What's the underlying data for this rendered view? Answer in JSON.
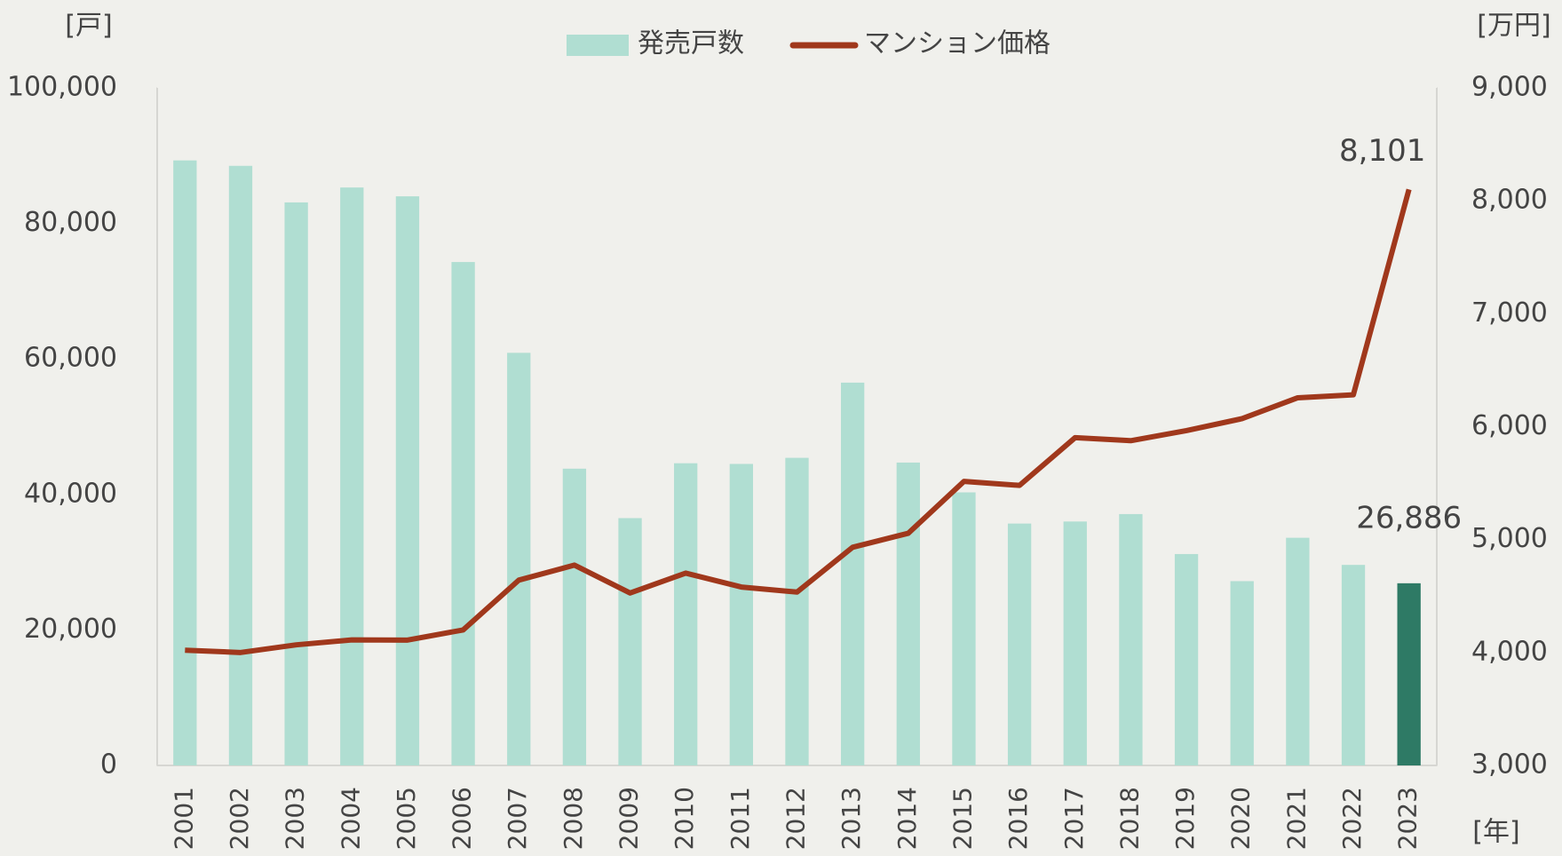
{
  "chart_data": {
    "type": "bar_line",
    "ylabel": "[戸]",
    "y2label": "[万円]",
    "xlabel": "[年]",
    "categories": [
      "2001",
      "2002",
      "2003",
      "2004",
      "2005",
      "2006",
      "2007",
      "2008",
      "2009",
      "2010",
      "2011",
      "2012",
      "2013",
      "2014",
      "2015",
      "2016",
      "2017",
      "2018",
      "2019",
      "2020",
      "2021",
      "2022",
      "2023"
    ],
    "series": [
      {
        "name": "発売戸数",
        "type": "bar",
        "color": "#b0ded2",
        "colors": [
          "#b0ded2",
          "#b0ded2",
          "#b0ded2",
          "#b0ded2",
          "#b0ded2",
          "#b0ded2",
          "#b0ded2",
          "#b0ded2",
          "#b0ded2",
          "#b0ded2",
          "#b0ded2",
          "#b0ded2",
          "#b0ded2",
          "#b0ded2",
          "#b0ded2",
          "#b0ded2",
          "#b0ded2",
          "#b0ded2",
          "#b0ded2",
          "#b0ded2",
          "#b0ded2",
          "#b0ded2",
          "#2e7a65"
        ],
        "values": [
          89300,
          88500,
          83100,
          85300,
          84000,
          74300,
          60900,
          43800,
          36500,
          44600,
          44500,
          45400,
          56500,
          44700,
          40300,
          35700,
          36000,
          37100,
          31200,
          27200,
          33600,
          29600,
          26886
        ],
        "value_labels": [
          null,
          null,
          null,
          null,
          null,
          null,
          null,
          null,
          null,
          null,
          null,
          null,
          null,
          null,
          null,
          null,
          null,
          null,
          null,
          null,
          null,
          null,
          "26,886"
        ]
      },
      {
        "name": "マンション価格",
        "type": "line",
        "axis": "y2",
        "color": "#a0381c",
        "values": [
          4020,
          4000,
          4068,
          4112,
          4110,
          4200,
          4641,
          4774,
          4527,
          4703,
          4580,
          4535,
          4932,
          5056,
          5515,
          5480,
          5903,
          5876,
          5965,
          6071,
          6256,
          6282,
          8101
        ],
        "value_labels": [
          null,
          null,
          null,
          null,
          null,
          null,
          null,
          null,
          null,
          null,
          null,
          null,
          null,
          null,
          null,
          null,
          null,
          null,
          null,
          null,
          null,
          null,
          "8,101"
        ]
      }
    ],
    "ylim": [
      0,
      100000
    ],
    "yticks": [
      0,
      {
        "value": 20000,
        "label": "20,000"
      },
      {
        "value": 40000,
        "label": "40,000"
      },
      {
        "value": 60000,
        "label": "60,000"
      },
      {
        "value": 80000,
        "label": "80,000"
      },
      {
        "value": 100000,
        "label": "100,000"
      }
    ],
    "y2lim": [
      3000,
      9000
    ],
    "y2ticks": [
      {
        "value": 3000,
        "label": "3,000"
      },
      {
        "value": 4000,
        "label": "4,000"
      },
      {
        "value": 5000,
        "label": "5,000"
      },
      {
        "value": 6000,
        "label": "6,000"
      },
      {
        "value": 7000,
        "label": "7,000"
      },
      {
        "value": 8000,
        "label": "8,000"
      },
      {
        "value": 9000,
        "label": "9,000"
      }
    ],
    "grid": false,
    "legend": "top"
  }
}
